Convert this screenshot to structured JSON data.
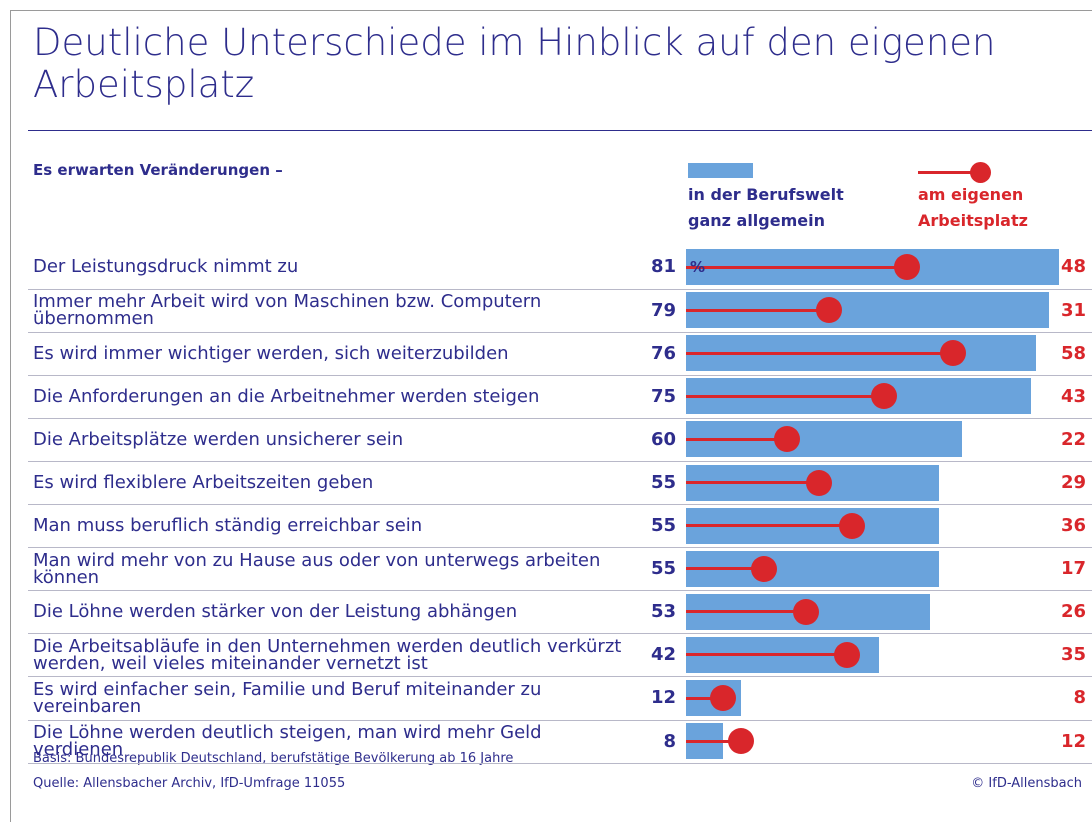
{
  "chart_data": {
    "type": "bar-lollipop",
    "title": "Deutliche Unterschiede im Hinblick auf den eigenen Arbeitsplatz",
    "subtitle": "Es erwarten Veränderungen –",
    "unit": "%",
    "categories": [
      "Der Leistungsdruck nimmt zu",
      "Immer mehr Arbeit wird von Maschinen bzw. Computern übernommen",
      "Es wird immer wichtiger werden, sich weiterzubilden",
      "Die Anforderungen an die Arbeitnehmer werden steigen",
      "Die Arbeitsplätze werden unsicherer sein",
      "Es wird flexiblere Arbeitszeiten geben",
      "Man muss beruflich ständig erreichbar sein",
      "Man wird mehr von zu Hause aus oder von unterwegs arbeiten können",
      "Die Löhne werden stärker von der Leistung abhängen",
      "Die Arbeitsabläufe in den Unternehmen werden deutlich verkürzt werden, weil vieles miteinander vernetzt ist",
      "Es wird einfacher sein, Familie und Beruf miteinander zu vereinbaren",
      "Die Löhne werden deutlich steigen, man wird mehr Geld verdienen"
    ],
    "series": [
      {
        "name": "in der Berufswelt ganz allgemein",
        "color": "#6aa3dc",
        "text_color": "#2e2d8c",
        "values": [
          81,
          79,
          76,
          75,
          60,
          55,
          55,
          55,
          53,
          42,
          12,
          8
        ]
      },
      {
        "name": "am eigenen Arbeitsplatz",
        "color": "#d9262b",
        "text_color": "#d9262b",
        "values": [
          48,
          31,
          58,
          43,
          22,
          29,
          36,
          17,
          26,
          35,
          8,
          12
        ]
      }
    ],
    "notes": [
      "Basis: Bundesrepublik Deutschland, berufstätige Bevölkerung ab 16 Jahre",
      "Quelle: Allensbacher Archiv, IfD-Umfrage 11055"
    ],
    "copyright": "© IfD-Allensbach"
  }
}
